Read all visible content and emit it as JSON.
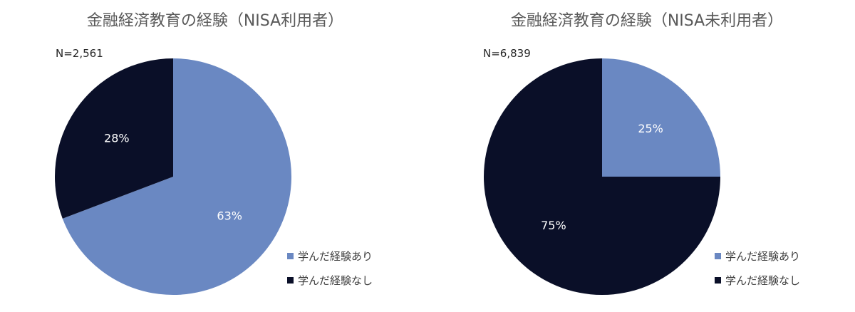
{
  "colors": {
    "learned": "#6a88c2",
    "not_learned": "#0a0f28"
  },
  "legend": {
    "learned": "学んだ経験あり",
    "not_learned": "学んだ経験なし"
  },
  "chart_data": [
    {
      "type": "pie",
      "title": "金融経済教育の経験（NISA利用者）",
      "n_label": "N=2,561",
      "slices": [
        {
          "key": "learned",
          "label": "学んだ経験あり",
          "value": 63,
          "value_label": "63%"
        },
        {
          "key": "not_learned",
          "label": "学んだ経験なし",
          "value": 28,
          "value_label": "28%"
        }
      ],
      "legend_placement": "bottom-right"
    },
    {
      "type": "pie",
      "title": "金融経済教育の経験（NISA未利用者）",
      "n_label": "N=6,839",
      "slices": [
        {
          "key": "learned",
          "label": "学んだ経験あり",
          "value": 25,
          "value_label": "25%"
        },
        {
          "key": "not_learned",
          "label": "学んだ経験なし",
          "value": 75,
          "value_label": "75%"
        }
      ],
      "legend_placement": "bottom-right"
    }
  ]
}
